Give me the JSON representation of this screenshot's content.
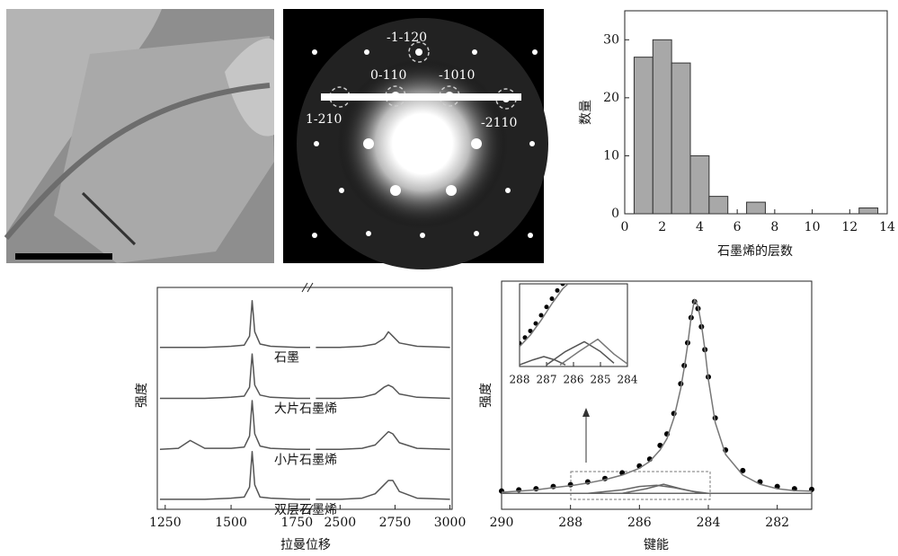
{
  "diffraction_labels": [
    "-1-120",
    "0-110",
    "-1010",
    "1-210",
    "-2110"
  ],
  "chart_data": [
    {
      "type": "histogram",
      "xlabel": "石墨烯的层数",
      "ylabel": "数量",
      "bins": [
        0.5,
        1.5,
        2.5,
        3.5,
        4.5,
        5.5,
        6.5,
        7.5,
        8.5,
        9.5,
        10.5,
        11.5,
        12.5,
        13.5
      ],
      "values": [
        27,
        30,
        26,
        10,
        3,
        0,
        2,
        0,
        0,
        0,
        0,
        0,
        1
      ],
      "color": "#a8a8a8",
      "xlim": [
        0,
        14
      ],
      "xticks": [
        0,
        2,
        4,
        6,
        8,
        10,
        12,
        14
      ],
      "ylim": [
        0,
        35
      ],
      "yticks": [
        0,
        10,
        20,
        30
      ]
    },
    {
      "type": "line",
      "xlabel": "拉曼位移",
      "ylabel": "强度",
      "broken_x": true,
      "xlim": [
        [
          1220,
          1800
        ],
        [
          2380,
          3010
        ]
      ],
      "xticks": [
        1250,
        1500,
        1750,
        2500,
        2750,
        3000
      ],
      "ylim": [
        0,
        100
      ],
      "x": [
        1230,
        1300,
        1345,
        1400,
        1500,
        1550,
        1570,
        1580,
        1590,
        1610,
        1650,
        1750,
        1800,
        2390,
        2500,
        2600,
        2660,
        2700,
        2720,
        2740,
        2770,
        2850,
        3000
      ],
      "series": [
        {
          "name": "石墨",
          "color": "#555",
          "values": [
            73,
            73,
            73,
            73,
            73.5,
            74,
            78,
            94,
            80,
            74.5,
            73.5,
            73,
            73,
            73,
            73,
            73.5,
            74.5,
            77,
            80,
            78,
            75,
            73.5,
            73
          ]
        },
        {
          "name": "大片石墨烯",
          "color": "#555",
          "values": [
            50,
            50,
            50,
            50,
            50.5,
            51,
            55,
            70,
            56,
            51.5,
            50.5,
            50,
            50,
            50,
            50,
            50.5,
            52,
            55,
            56,
            55,
            52,
            50.5,
            50
          ]
        },
        {
          "name": "小片石墨烯",
          "color": "#555",
          "values": [
            27,
            27.5,
            31,
            27.5,
            27.5,
            28,
            33,
            49,
            34,
            28.5,
            27.5,
            27,
            27,
            27,
            27,
            27.5,
            29,
            33,
            35,
            34,
            30,
            27.5,
            27
          ]
        },
        {
          "name": "双层石墨烯",
          "color": "#555",
          "values": [
            4.5,
            4.5,
            4.5,
            4.5,
            5,
            5.5,
            10,
            26,
            11,
            5.5,
            5,
            4.5,
            4.5,
            4.5,
            4.5,
            5,
            7,
            11,
            13,
            13,
            8,
            5,
            4.5
          ]
        }
      ]
    },
    {
      "type": "line",
      "xlabel": "键能",
      "ylabel": "强度",
      "xlim": [
        290,
        281
      ],
      "xticks": [
        290,
        288,
        286,
        284,
        282
      ],
      "ylim": [
        0,
        100
      ],
      "x": [
        290,
        289.5,
        289,
        288.5,
        288,
        287.5,
        287,
        286.5,
        286,
        285.7,
        285.4,
        285.2,
        285,
        284.8,
        284.7,
        284.6,
        284.5,
        284.4,
        284.3,
        284.2,
        284.1,
        284,
        283.8,
        283.5,
        283,
        282.5,
        282,
        281.5,
        281
      ],
      "series": [
        {
          "marker": "dot",
          "color": "#000",
          "values": [
            8,
            8.5,
            9,
            10,
            10.8,
            12,
            13.5,
            16,
            19,
            22,
            28,
            33,
            42,
            55,
            63,
            73,
            84,
            91,
            88,
            80,
            70,
            58,
            40,
            26,
            17,
            12,
            10,
            9,
            8.7
          ]
        },
        {
          "color": "#777",
          "values": [
            7.5,
            8,
            8.5,
            9.5,
            10.3,
            11.5,
            13,
            15,
            18,
            21,
            26,
            31,
            40,
            53,
            62,
            72,
            84,
            92,
            89,
            81,
            70,
            57,
            38,
            24,
            15,
            11,
            9,
            8.2,
            8
          ]
        },
        {
          "color": "#666",
          "x": [
            290,
            281
          ],
          "values": [
            7,
            7
          ]
        },
        {
          "color": "#666",
          "x": [
            287.5,
            286.5,
            286,
            285.5,
            285,
            284.5,
            284
          ],
          "values": [
            7,
            8.5,
            10,
            10.5,
            9.5,
            8,
            7
          ]
        },
        {
          "color": "#666",
          "x": [
            286.5,
            285.8,
            285.3,
            284.8,
            284.2
          ],
          "values": [
            7,
            9,
            11,
            9,
            7
          ]
        }
      ]
    },
    {
      "type": "line",
      "inset": true,
      "xlim": [
        288,
        284
      ],
      "xticks": [
        288,
        287,
        286,
        285,
        284
      ],
      "ylim": [
        0,
        100
      ],
      "x": [
        288,
        287.8,
        287.6,
        287.4,
        287.2,
        287,
        286.8,
        286.6,
        286.4
      ],
      "series": [
        {
          "marker": "dot",
          "color": "#000",
          "values": [
            28,
            35,
            43,
            52,
            62,
            72,
            82,
            92,
            100
          ]
        },
        {
          "color": "#777",
          "x": [
            288,
            287.6,
            287.2,
            286.8,
            286.4,
            286.2
          ],
          "values": [
            24,
            38,
            56,
            76,
            94,
            100
          ]
        },
        {
          "color": "#555",
          "x": [
            288,
            287.5,
            287.1,
            286.7,
            286.3
          ],
          "values": [
            2,
            8,
            12,
            8,
            2
          ]
        },
        {
          "color": "#555",
          "x": [
            287,
            286.3,
            285.6,
            285,
            284.5
          ],
          "values": [
            2,
            18,
            30,
            18,
            4
          ]
        },
        {
          "color": "#777",
          "x": [
            286.5,
            285.8,
            285.1,
            284.5,
            284
          ],
          "values": [
            2,
            18,
            33,
            15,
            3
          ]
        }
      ]
    }
  ]
}
